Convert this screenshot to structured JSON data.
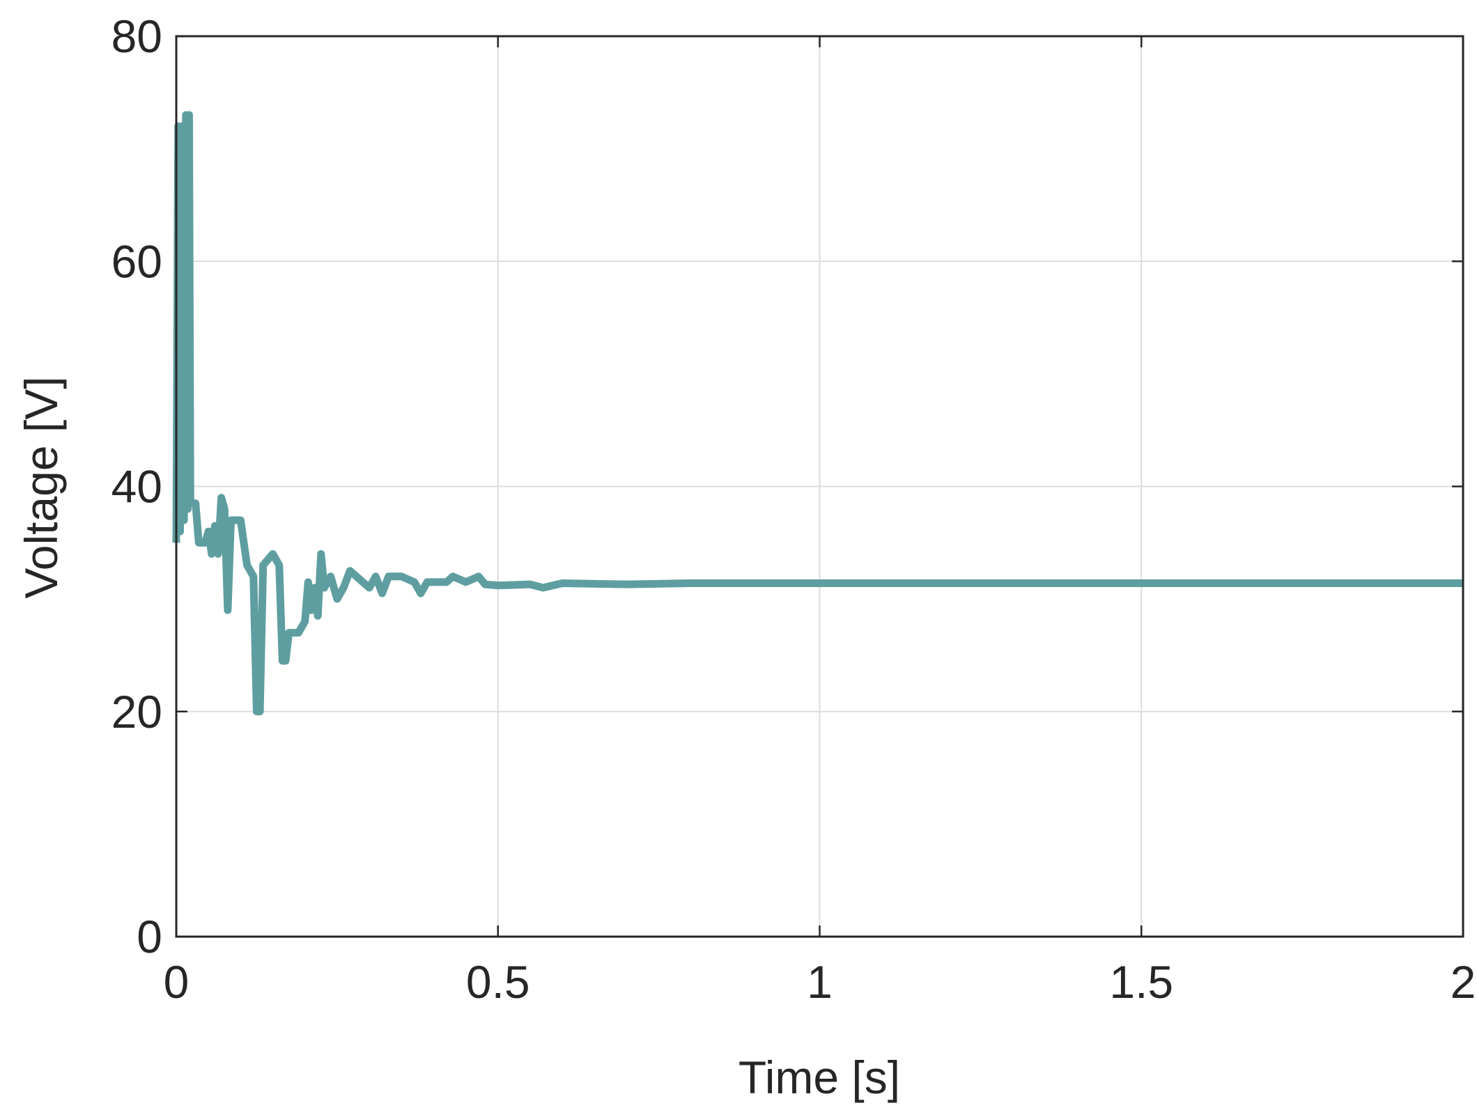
{
  "chart_data": {
    "type": "line",
    "xlabel": "Time [s]",
    "ylabel": "Voltage [V]",
    "xlim": [
      0,
      2
    ],
    "ylim": [
      0,
      80
    ],
    "xticks": [
      0,
      0.5,
      1,
      1.5,
      2
    ],
    "yticks": [
      0,
      20,
      40,
      60,
      80
    ],
    "grid": true,
    "series": [
      {
        "color": "#5f9ea0",
        "x": [
          0,
          0.003,
          0.006,
          0.009,
          0.012,
          0.015,
          0.018,
          0.02,
          0.022,
          0.03,
          0.035,
          0.045,
          0.05,
          0.055,
          0.06,
          0.065,
          0.07,
          0.075,
          0.08,
          0.085,
          0.1,
          0.11,
          0.12,
          0.125,
          0.13,
          0.135,
          0.15,
          0.16,
          0.165,
          0.17,
          0.175,
          0.19,
          0.2,
          0.205,
          0.21,
          0.215,
          0.22,
          0.225,
          0.23,
          0.24,
          0.25,
          0.26,
          0.27,
          0.29,
          0.3,
          0.31,
          0.32,
          0.33,
          0.35,
          0.37,
          0.38,
          0.39,
          0.42,
          0.43,
          0.45,
          0.47,
          0.48,
          0.5,
          0.55,
          0.57,
          0.6,
          0.7,
          0.8,
          1,
          2
        ],
        "values": [
          35,
          72,
          36,
          72,
          37,
          73,
          38,
          73,
          38.5,
          38.5,
          35,
          35,
          36,
          34,
          36.5,
          34,
          39,
          38,
          29,
          37,
          37,
          33,
          32,
          20,
          20,
          33,
          34,
          33,
          24.5,
          24.5,
          27,
          27,
          28,
          31.5,
          29,
          31,
          28.5,
          34,
          31,
          32,
          30,
          31,
          32.5,
          31.5,
          31,
          32,
          30.5,
          32,
          32,
          31.5,
          30.5,
          31.5,
          31.5,
          32,
          31.5,
          32,
          31.3,
          31.2,
          31.3,
          31,
          31.4,
          31.3,
          31.4,
          31.4,
          31.4
        ]
      }
    ]
  }
}
